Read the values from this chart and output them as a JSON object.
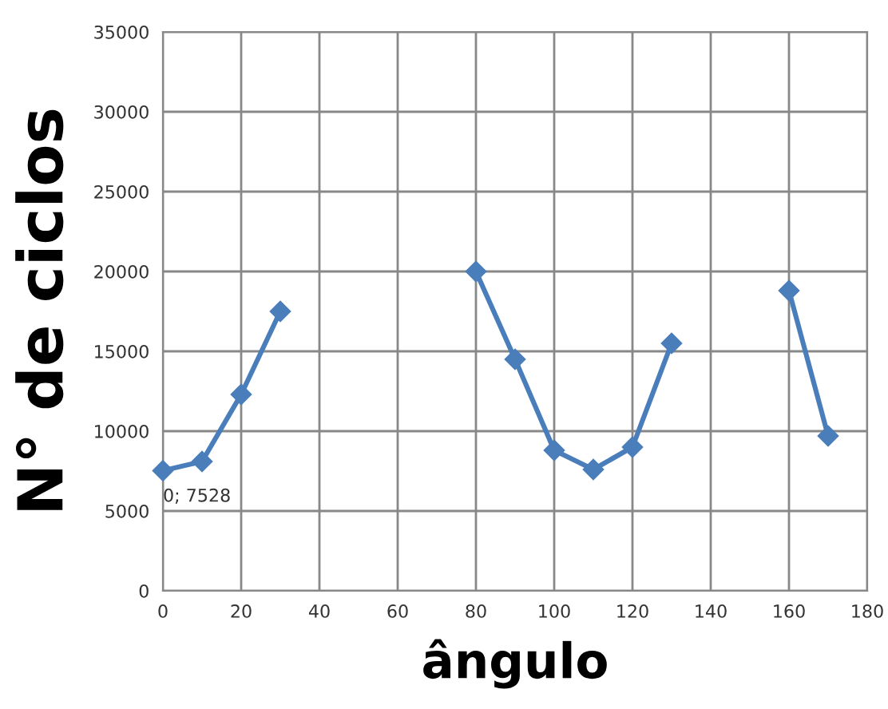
{
  "chart_data": {
    "type": "line",
    "xlabel": "ângulo",
    "ylabel": "N° de ciclos",
    "x": [
      0,
      10,
      20,
      30,
      40,
      50,
      60,
      70,
      80,
      90,
      100,
      110,
      120,
      130,
      140,
      150,
      160,
      170
    ],
    "series": [
      {
        "color": "#4a7ebb",
        "values": [
          7528,
          8100,
          12300,
          17500,
          null,
          null,
          null,
          null,
          20000,
          14500,
          8800,
          7600,
          9000,
          15500,
          null,
          null,
          18800,
          9700
        ]
      }
    ],
    "xlim": [
      0,
      180
    ],
    "xticks": [
      0,
      20,
      40,
      60,
      80,
      100,
      120,
      140,
      160,
      180
    ],
    "ylim": [
      0,
      35000
    ],
    "yticks": [
      0,
      5000,
      10000,
      15000,
      20000,
      25000,
      30000,
      35000
    ],
    "grid": true,
    "marker": "diamond",
    "line_style": "solid",
    "annotations": [
      {
        "text": "0; 7528",
        "x": 0,
        "y": 7528
      }
    ]
  }
}
